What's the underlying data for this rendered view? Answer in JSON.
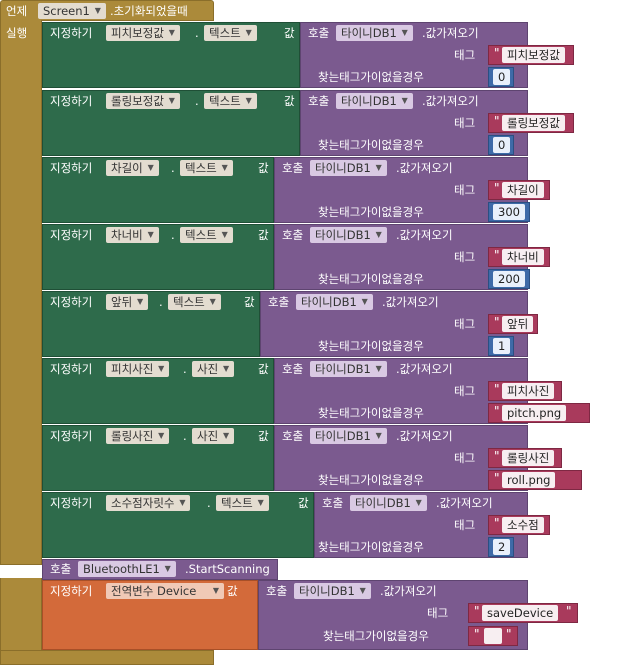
{
  "event": {
    "when": "언제",
    "component": "Screen1",
    "suffix": ".초기화되었을때",
    "do": "실행"
  },
  "kw": {
    "set": "지정하기",
    "to": "값",
    "call": "호출",
    "getvalue": ".값가져오기",
    "tag": "태그",
    "notfound": "찾는태그가이없을경우",
    "db": "타이니DB1",
    "global": "전역변수"
  },
  "setters": [
    {
      "comp": "피치보정값",
      "prop": "텍스트",
      "tag": "피치보정값",
      "val": "0"
    },
    {
      "comp": "롤링보정값",
      "prop": "텍스트",
      "tag": "롤링보정값",
      "val": "0"
    },
    {
      "comp": "차길이",
      "prop": "텍스트",
      "tag": "차길이",
      "val": "300"
    },
    {
      "comp": "차너비",
      "prop": "텍스트",
      "tag": "차너비",
      "val": "200"
    },
    {
      "comp": "앞뒤",
      "prop": "텍스트",
      "tag": "앞뒤",
      "val": "1"
    },
    {
      "comp": "피치사진",
      "prop": "사진",
      "tag": "피치사진",
      "val": "pitch.png"
    },
    {
      "comp": "롤링사진",
      "prop": "사진",
      "tag": "롤링사진",
      "val": "roll.png"
    },
    {
      "comp": "소수점자릿수",
      "prop": "텍스트",
      "tag": "소수점",
      "val": "2"
    }
  ],
  "scan": {
    "call": "호출",
    "comp": "BluetoothLE1",
    "method": ".StartScanning"
  },
  "global": {
    "name": "Device",
    "tag": "saveDevice",
    "val": " "
  },
  "colors": {
    "event": "#ab8a3a",
    "setter": "#2e6b4b",
    "call": "#7b5a8f",
    "string": "#a93a5c",
    "number": "#3e6aa8",
    "global": "#d36a3a"
  }
}
